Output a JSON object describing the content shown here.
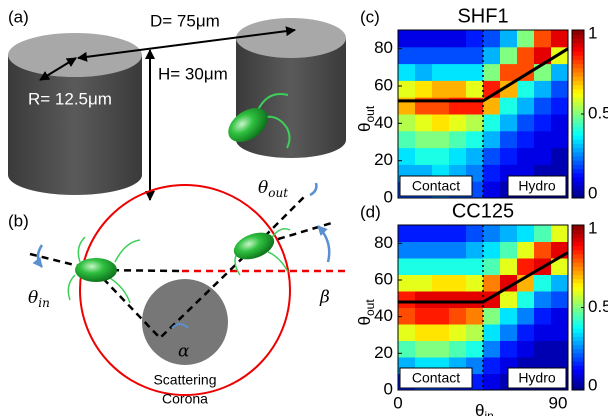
{
  "figure": {
    "a": {
      "label": "(a)",
      "d": "D= 75μm",
      "h": "H= 30μm",
      "r": "R= 12.5μm"
    },
    "b": {
      "label": "(b)",
      "theta_out": {
        "text": "θ",
        "sub": "out"
      },
      "theta_in": {
        "text": "θ",
        "sub": "in"
      },
      "beta": "β",
      "alpha": "α",
      "corona": [
        "Scattering",
        "Corona"
      ]
    }
  },
  "chart_data": [
    {
      "type": "heatmap",
      "label": "(c)",
      "title": "SHF1",
      "ylabel": {
        "text": "θ",
        "sub": "out"
      },
      "xlim": [
        0,
        90
      ],
      "ylim": [
        0,
        90
      ],
      "yticks": [
        0,
        20,
        40,
        60,
        80
      ],
      "clim": [
        0,
        1
      ],
      "cticks": [
        0,
        0.5,
        1
      ],
      "colormap": "jet",
      "divider": 45,
      "fit": {
        "x": [
          0,
          45,
          90
        ],
        "y": [
          52,
          52,
          80
        ]
      },
      "annotations": [
        "Contact",
        "Hydro"
      ],
      "z": [
        [
          0.2,
          0.2,
          0.25,
          0.2,
          0.2,
          0.1,
          0.05,
          0.05,
          0.05,
          0.05
        ],
        [
          0.3,
          0.3,
          0.35,
          0.3,
          0.25,
          0.15,
          0.1,
          0.1,
          0.05,
          0.05
        ],
        [
          0.35,
          0.4,
          0.4,
          0.35,
          0.3,
          0.2,
          0.15,
          0.1,
          0.1,
          0.05
        ],
        [
          0.45,
          0.5,
          0.5,
          0.45,
          0.4,
          0.3,
          0.2,
          0.15,
          0.1,
          0.1
        ],
        [
          0.55,
          0.6,
          0.65,
          0.6,
          0.55,
          0.4,
          0.3,
          0.2,
          0.15,
          0.1
        ],
        [
          0.7,
          0.8,
          0.8,
          0.85,
          0.85,
          0.7,
          0.4,
          0.3,
          0.2,
          0.15
        ],
        [
          0.6,
          0.65,
          0.7,
          0.7,
          0.6,
          0.85,
          0.7,
          0.4,
          0.3,
          0.2
        ],
        [
          0.35,
          0.3,
          0.35,
          0.35,
          0.35,
          0.5,
          0.8,
          0.8,
          0.5,
          0.3
        ],
        [
          0.2,
          0.2,
          0.2,
          0.2,
          0.2,
          0.3,
          0.5,
          0.8,
          0.9,
          0.6
        ],
        [
          0.1,
          0.1,
          0.1,
          0.1,
          0.15,
          0.2,
          0.3,
          0.5,
          0.8,
          0.9
        ]
      ]
    },
    {
      "type": "heatmap",
      "label": "(d)",
      "title": "CC125",
      "ylabel": {
        "text": "θ",
        "sub": "out"
      },
      "xlabel": {
        "text": "θ",
        "sub": "in"
      },
      "xlim": [
        0,
        90
      ],
      "ylim": [
        0,
        90
      ],
      "xticks": [
        0,
        90
      ],
      "yticks": [
        0,
        20,
        40,
        60,
        80
      ],
      "clim": [
        0,
        1
      ],
      "cticks": [
        0,
        0.5,
        1
      ],
      "colormap": "jet",
      "divider": 45,
      "fit": {
        "x": [
          0,
          45,
          90
        ],
        "y": [
          48,
          48,
          75
        ]
      },
      "annotations": [
        "Contact",
        "Hydro"
      ],
      "z": [
        [
          0.15,
          0.2,
          0.2,
          0.15,
          0.15,
          0.1,
          0.05,
          0.05,
          0.05,
          0.05
        ],
        [
          0.3,
          0.35,
          0.35,
          0.3,
          0.25,
          0.15,
          0.1,
          0.05,
          0.05,
          0.05
        ],
        [
          0.45,
          0.5,
          0.5,
          0.45,
          0.4,
          0.25,
          0.15,
          0.1,
          0.05,
          0.05
        ],
        [
          0.6,
          0.65,
          0.65,
          0.6,
          0.55,
          0.35,
          0.25,
          0.15,
          0.1,
          0.1
        ],
        [
          0.8,
          0.85,
          0.85,
          0.8,
          0.75,
          0.5,
          0.35,
          0.25,
          0.15,
          0.1
        ],
        [
          0.85,
          0.9,
          0.9,
          0.9,
          0.9,
          0.9,
          0.6,
          0.4,
          0.25,
          0.2
        ],
        [
          0.6,
          0.6,
          0.65,
          0.65,
          0.6,
          0.75,
          0.9,
          0.7,
          0.4,
          0.3
        ],
        [
          0.4,
          0.4,
          0.4,
          0.4,
          0.4,
          0.45,
          0.6,
          0.85,
          0.9,
          0.6
        ],
        [
          0.25,
          0.25,
          0.25,
          0.25,
          0.3,
          0.35,
          0.45,
          0.6,
          0.8,
          0.9
        ],
        [
          0.15,
          0.15,
          0.15,
          0.15,
          0.2,
          0.25,
          0.3,
          0.35,
          0.45,
          0.6
        ]
      ]
    }
  ]
}
